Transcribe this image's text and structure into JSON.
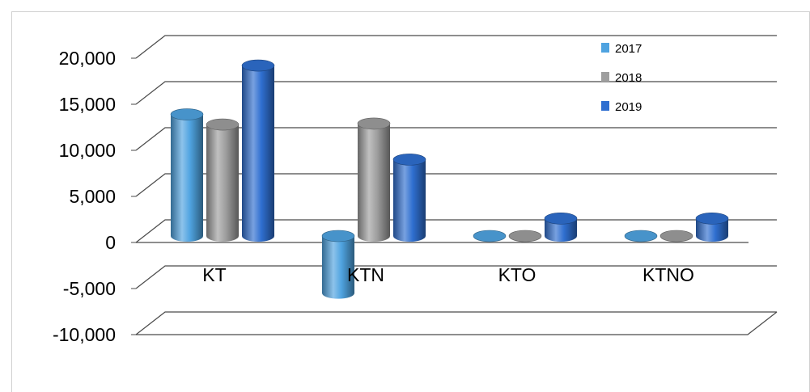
{
  "chart_data": {
    "type": "bar",
    "categories": [
      "KT",
      "KTN",
      "KTO",
      "KTNO"
    ],
    "series": [
      {
        "name": "2017",
        "values": [
          13200,
          -6200,
          0,
          0
        ],
        "color": "#4FA3E0"
      },
      {
        "name": "2018",
        "values": [
          12100,
          12200,
          0,
          0
        ],
        "color": "#9E9E9E"
      },
      {
        "name": "2019",
        "values": [
          18500,
          8300,
          1900,
          1900
        ],
        "color": "#2F6FD0"
      }
    ],
    "y_ticks": [
      "20,000",
      "15,000",
      "10,000",
      "5,000",
      "0",
      "-5,000",
      "-10,000"
    ],
    "ylim": [
      -10000,
      20000
    ],
    "grid": true,
    "legend_position": "top-right",
    "style": "3d-cylinder"
  }
}
